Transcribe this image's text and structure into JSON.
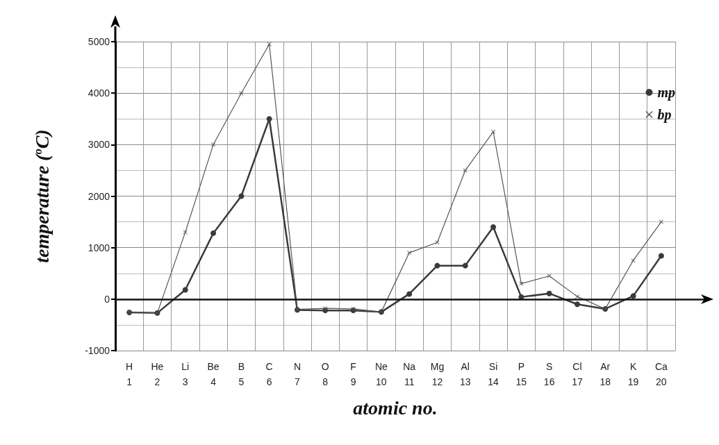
{
  "chart_data": {
    "type": "line",
    "xlabel": "atomic no.",
    "ylabel": "temperature ($^{o}$C)",
    "categories": [
      "H\n1",
      "He\n2",
      "Li\n3",
      "Be\n4",
      "B\n5",
      "C\n6",
      "N\n7",
      "O\n8",
      "F\n9",
      "Ne\n10",
      "Na\n11",
      "Mg\n12",
      "Al\n13",
      "Si\n14",
      "P\n15",
      "S\n16",
      "Cl\n17",
      "Ar\n18",
      "K\n19",
      "Ca\n20"
    ],
    "series": [
      {
        "name": "mp",
        "color": "#3a3a3a",
        "marker": "circle",
        "values": [
          -260,
          -270,
          180,
          1280,
          2000,
          3500,
          -210,
          -220,
          -220,
          -250,
          100,
          650,
          650,
          1400,
          40,
          110,
          -100,
          -190,
          60,
          840
        ]
      },
      {
        "name": "bp",
        "color": "#555555",
        "marker": "cross",
        "values": [
          -250,
          -270,
          1300,
          3000,
          4000,
          4950,
          -200,
          -180,
          -190,
          -250,
          900,
          1100,
          2500,
          3250,
          300,
          450,
          50,
          -190,
          750,
          1500
        ]
      }
    ],
    "ylim": [
      -1000,
      5000
    ],
    "yticks": [
      -1000,
      0,
      1000,
      2000,
      3000,
      4000,
      5000
    ],
    "grid": true,
    "legend": "top right",
    "line_style": "solid",
    "ref_lines": [
      {
        "axis": "y",
        "value": 0,
        "color": "#111111"
      }
    ]
  }
}
